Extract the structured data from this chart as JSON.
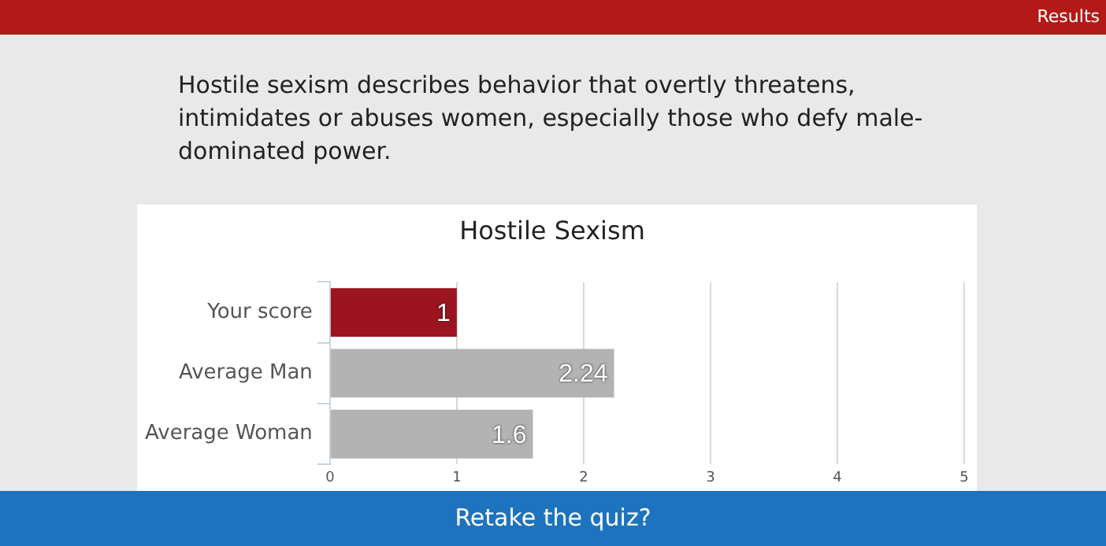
{
  "chart_data": {
    "type": "bar",
    "orientation": "horizontal",
    "title": "Hostile Sexism",
    "subtitle": "Hostile sexism describes behavior that overtly threatens, intimidates or abuses women, especially those who defy male-dominated power.",
    "annotations": [
      "Results",
      "Retake the quiz?"
    ],
    "categories": [
      "Your score",
      "Average Man",
      "Average Woman"
    ],
    "values": [
      1,
      2.24,
      1.6
    ],
    "colors": [
      "#9b1520",
      "#b3b3b3",
      "#b3b3b3"
    ],
    "xlim": [
      0,
      5
    ],
    "xticks": [
      0,
      1,
      2,
      3,
      4,
      5
    ],
    "grid": "x",
    "legend": false,
    "data_labels": true
  }
}
